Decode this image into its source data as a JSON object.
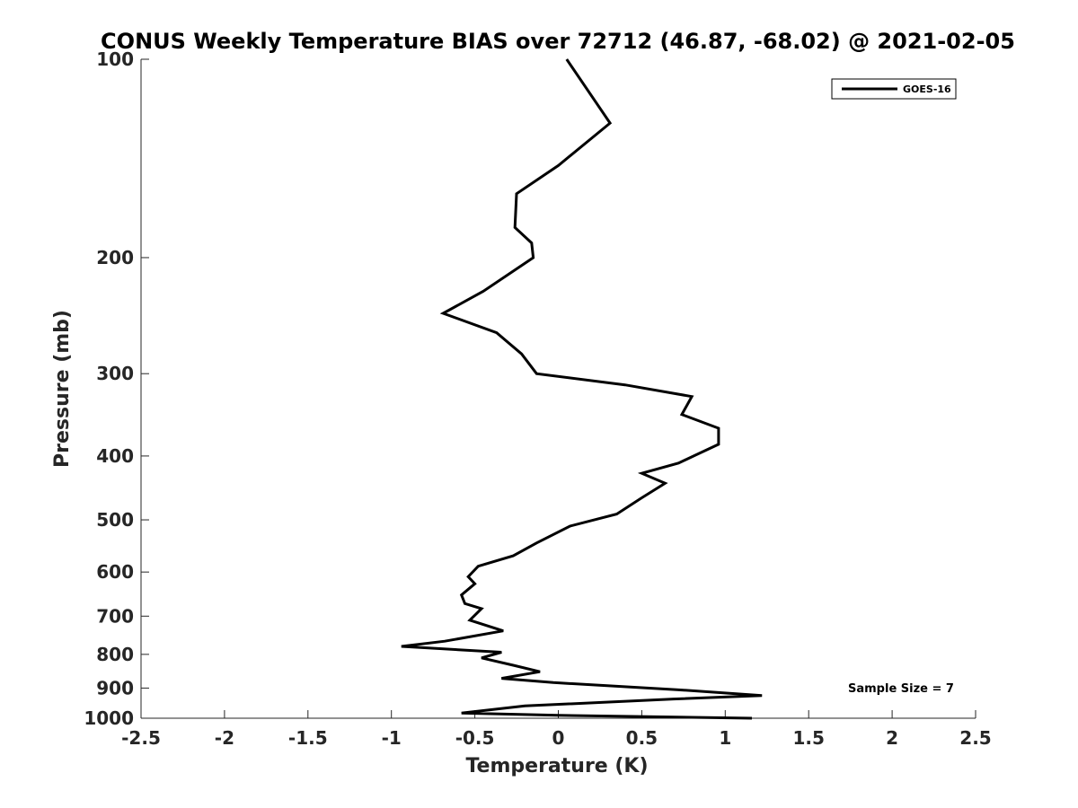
{
  "chart_data": {
    "type": "line",
    "title": "CONUS Weekly Temperature BIAS over 72712 (46.87, -68.02) @ 2021-02-05",
    "xlabel": "Temperature (K)",
    "ylabel": "Pressure (mb)",
    "xlim": [
      -2.5,
      2.5
    ],
    "ylim": [
      100,
      1000
    ],
    "y_scale": "log",
    "y_reversed": true,
    "x_ticks": [
      "-2.5",
      "-2",
      "-1.5",
      "-1",
      "-0.5",
      "0",
      "0.5",
      "1",
      "1.5",
      "2",
      "2.5"
    ],
    "y_ticks": [
      "100",
      "200",
      "300",
      "400",
      "500",
      "600",
      "700",
      "800",
      "900",
      "1000"
    ],
    "grid": false,
    "legend": {
      "placement": "top-right",
      "entries": [
        "GOES-16"
      ]
    },
    "annotation": "Sample Size = 7",
    "series": [
      {
        "name": "GOES-16",
        "color": "#000000",
        "points": [
          [
            0.05,
            100
          ],
          [
            0.31,
            125
          ],
          [
            0.0,
            145
          ],
          [
            -0.25,
            160
          ],
          [
            -0.26,
            180
          ],
          [
            -0.16,
            190
          ],
          [
            -0.15,
            200
          ],
          [
            -0.45,
            225
          ],
          [
            -0.69,
            243
          ],
          [
            -0.37,
            260
          ],
          [
            -0.22,
            280
          ],
          [
            -0.13,
            300
          ],
          [
            0.4,
            312
          ],
          [
            0.8,
            325
          ],
          [
            0.74,
            346
          ],
          [
            0.96,
            363
          ],
          [
            0.96,
            384
          ],
          [
            0.72,
            410
          ],
          [
            0.5,
            425
          ],
          [
            0.64,
            440
          ],
          [
            0.5,
            463
          ],
          [
            0.35,
            490
          ],
          [
            0.07,
            511
          ],
          [
            -0.13,
            542
          ],
          [
            -0.27,
            567
          ],
          [
            -0.48,
            588
          ],
          [
            -0.54,
            610
          ],
          [
            -0.5,
            625
          ],
          [
            -0.58,
            650
          ],
          [
            -0.56,
            670
          ],
          [
            -0.46,
            682
          ],
          [
            -0.53,
            710
          ],
          [
            -0.33,
            737
          ],
          [
            -0.68,
            764
          ],
          [
            -0.94,
            778
          ],
          [
            -0.34,
            794
          ],
          [
            -0.46,
            810
          ],
          [
            -0.27,
            831
          ],
          [
            -0.11,
            850
          ],
          [
            -0.34,
            870
          ],
          [
            -0.03,
            883
          ],
          [
            0.71,
            905
          ],
          [
            1.22,
            924
          ],
          [
            0.69,
            935
          ],
          [
            -0.2,
            958
          ],
          [
            -0.58,
            982
          ],
          [
            0.0,
            990
          ],
          [
            1.16,
            1000
          ]
        ]
      }
    ]
  }
}
